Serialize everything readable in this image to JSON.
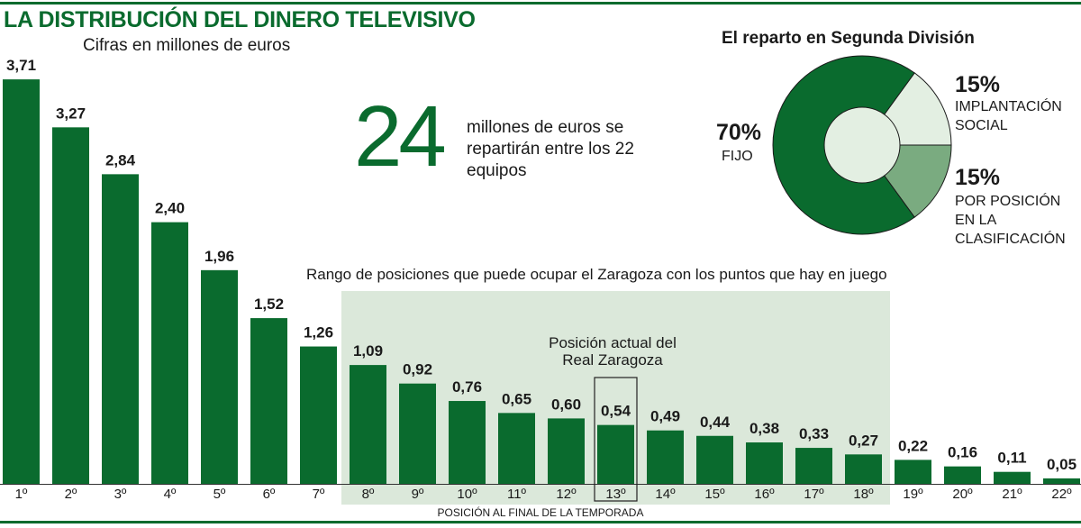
{
  "header": {
    "title": "LA DISTRIBUCIÓN DEL DINERO TELEVISIVO",
    "subtitle": "Cifras en millones de euros"
  },
  "highlight": {
    "number": "24",
    "text": "millones de euros se repartirán entre los 22 equipos"
  },
  "colors": {
    "bar": "#0a6b2e",
    "range_bg": "#dbe8da",
    "donut_dark": "#0a6b2e",
    "donut_mid": "#7aab80",
    "donut_light": "#e3efe2"
  },
  "range": {
    "label": "Rango de posiciones que puede ocupar el Zaragoza con los puntos que hay en juego",
    "from": "8º",
    "to": "18º"
  },
  "current": {
    "label": "Posición actual del Real Zaragoza",
    "position": "13º"
  },
  "chart_data": [
    {
      "type": "bar",
      "title": "",
      "xlabel": "POSICIÓN AL FINAL DE LA TEMPORADA",
      "ylabel": "",
      "ylim": [
        0,
        3.71
      ],
      "grid": false,
      "categories": [
        "1º",
        "2º",
        "3º",
        "4º",
        "5º",
        "6º",
        "7º",
        "8º",
        "9º",
        "10º",
        "11º",
        "12º",
        "13º",
        "14º",
        "15º",
        "16º",
        "17º",
        "18º",
        "19º",
        "20º",
        "21º",
        "22º"
      ],
      "values": [
        3.71,
        3.27,
        2.84,
        2.4,
        1.96,
        1.52,
        1.26,
        1.09,
        0.92,
        0.76,
        0.65,
        0.6,
        0.54,
        0.49,
        0.44,
        0.38,
        0.33,
        0.27,
        0.22,
        0.16,
        0.11,
        0.05
      ],
      "data_labels": [
        "3,71",
        "3,27",
        "2,84",
        "2,40",
        "1,96",
        "1,52",
        "1,26",
        "1,09",
        "0,92",
        "0,76",
        "0,65",
        "0,60",
        "0,54",
        "0,49",
        "0,44",
        "0,38",
        "0,33",
        "0,27",
        "0,22",
        "0,16",
        "0,11",
        "0,05"
      ]
    },
    {
      "type": "pie",
      "title": "El reparto en Segunda División",
      "slices": [
        {
          "label": "IMPLANTACIÓN SOCIAL",
          "value": 15,
          "text": "15%"
        },
        {
          "label": "POR POSICIÓN EN LA CLASIFICACIÓN",
          "value": 15,
          "text": "15%"
        },
        {
          "label": "FIJO",
          "value": 70,
          "text": "70%"
        }
      ]
    }
  ]
}
